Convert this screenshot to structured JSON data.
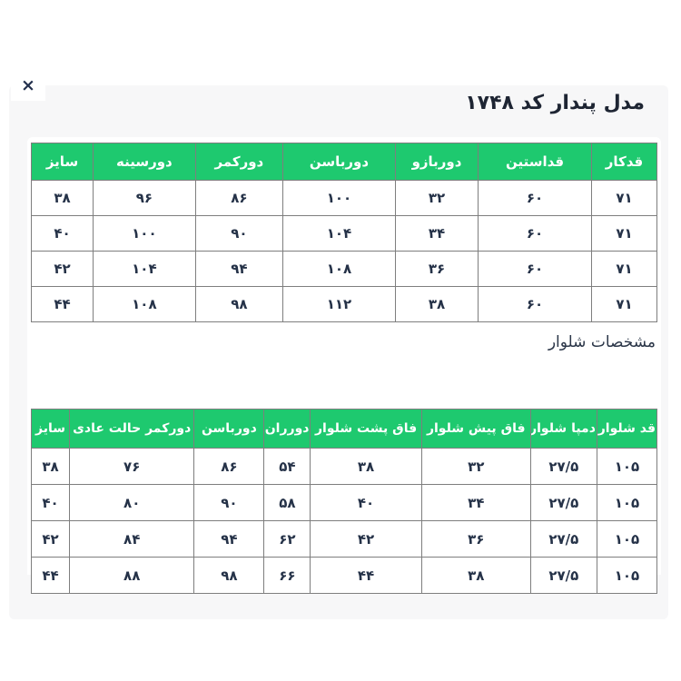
{
  "modal": {
    "close_label": "×",
    "title": "مدل پندار کد ۱۷۴۸",
    "pants_section_label": "مشخصات شلوار"
  },
  "shirt_table": {
    "headers": [
      "قدکار",
      "قداستین",
      "دوربازو",
      "دورباسن",
      "دورکمر",
      "دورسینه",
      "سایز"
    ],
    "rows": [
      [
        "۷۱",
        "۶۰",
        "۳۲",
        "۱۰۰",
        "۸۶",
        "۹۶",
        "۳۸"
      ],
      [
        "۷۱",
        "۶۰",
        "۳۴",
        "۱۰۴",
        "۹۰",
        "۱۰۰",
        "۴۰"
      ],
      [
        "۷۱",
        "۶۰",
        "۳۶",
        "۱۰۸",
        "۹۴",
        "۱۰۴",
        "۴۲"
      ],
      [
        "۷۱",
        "۶۰",
        "۳۸",
        "۱۱۲",
        "۹۸",
        "۱۰۸",
        "۴۴"
      ]
    ]
  },
  "pants_table": {
    "headers": [
      "قد شلوار",
      "دمپا شلوار",
      "فاق پیش شلوار",
      "فاق پشت شلوار",
      "دورران",
      "دورباسن",
      "دورکمر حالت عادی",
      "سایز"
    ],
    "rows": [
      [
        "۱۰۵",
        "۲۷/۵",
        "۳۲",
        "۳۸",
        "۵۴",
        "۸۶",
        "۷۶",
        "۳۸"
      ],
      [
        "۱۰۵",
        "۲۷/۵",
        "۳۴",
        "۴۰",
        "۵۸",
        "۹۰",
        "۸۰",
        "۴۰"
      ],
      [
        "۱۰۵",
        "۲۷/۵",
        "۳۶",
        "۴۲",
        "۶۲",
        "۹۴",
        "۸۴",
        "۴۲"
      ],
      [
        "۱۰۵",
        "۲۷/۵",
        "۳۸",
        "۴۴",
        "۶۶",
        "۹۸",
        "۸۸",
        "۴۴"
      ]
    ]
  },
  "colors": {
    "header_green": "#1ec96f",
    "table_border": "#7e7e7e",
    "panel_background": "#f7f7f8",
    "text_dark": "#253248"
  }
}
